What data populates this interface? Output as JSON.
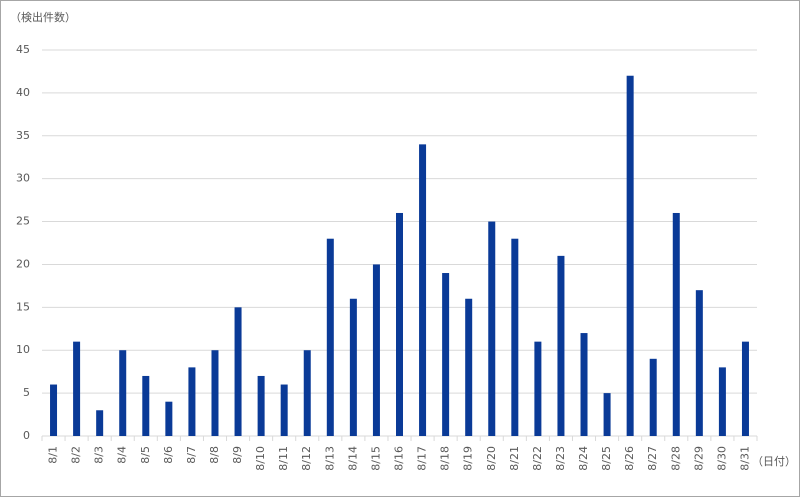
{
  "chart_data": {
    "type": "bar",
    "y_label": "（検出件数）",
    "x_label": "（日付）",
    "categories": [
      "8/1",
      "8/2",
      "8/3",
      "8/4",
      "8/5",
      "8/6",
      "8/7",
      "8/8",
      "8/9",
      "8/10",
      "8/11",
      "8/12",
      "8/13",
      "8/14",
      "8/15",
      "8/16",
      "8/17",
      "8/18",
      "8/19",
      "8/20",
      "8/21",
      "8/22",
      "8/23",
      "8/24",
      "8/25",
      "8/26",
      "8/27",
      "8/28",
      "8/29",
      "8/30",
      "8/31"
    ],
    "values": [
      6,
      11,
      3,
      10,
      7,
      4,
      8,
      10,
      15,
      7,
      6,
      10,
      23,
      16,
      20,
      26,
      34,
      19,
      16,
      25,
      23,
      11,
      21,
      12,
      5,
      42,
      9,
      26,
      17,
      8,
      11
    ],
    "color": "#0a3a97",
    "ylim": [
      0,
      45
    ],
    "yticks": [
      0,
      5,
      10,
      15,
      20,
      25,
      30,
      35,
      40,
      45
    ],
    "grid": true
  }
}
